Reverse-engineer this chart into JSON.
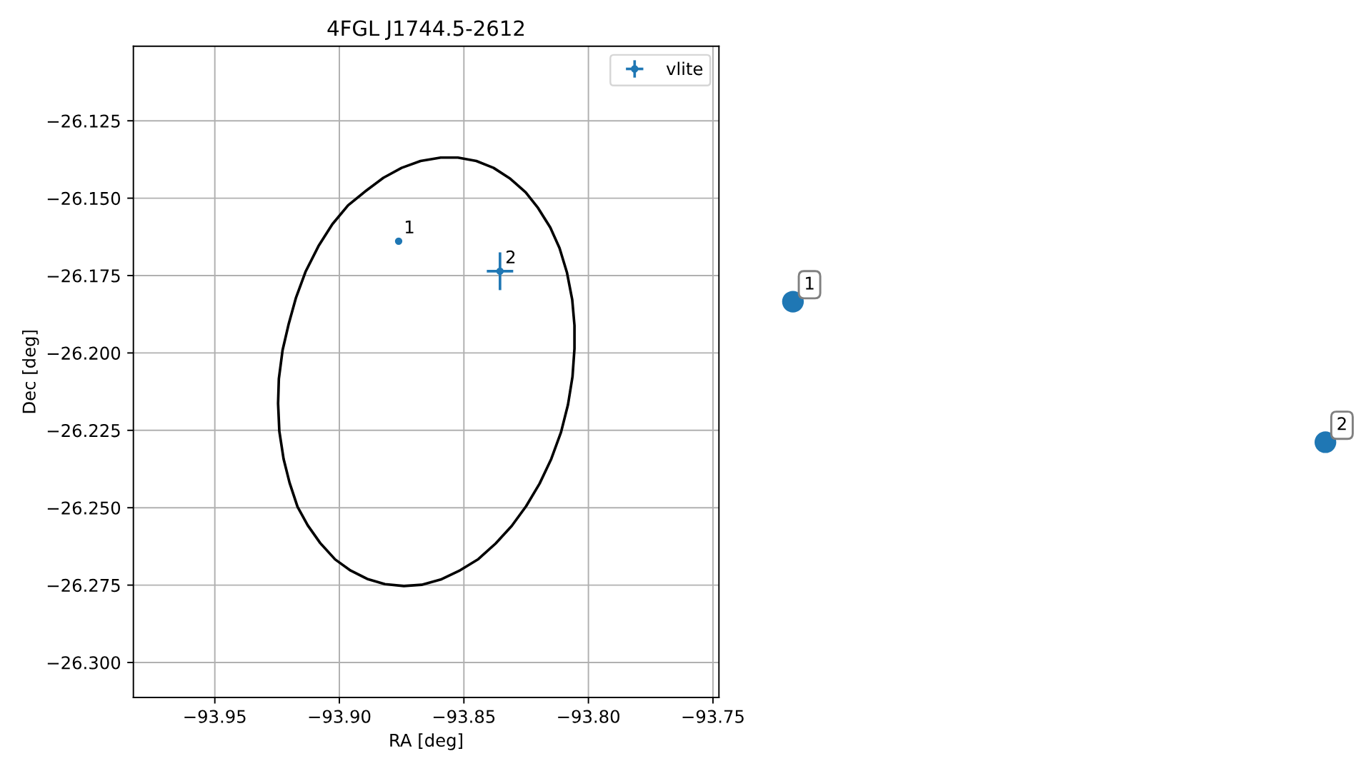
{
  "chart_data": [
    {
      "type": "scatter",
      "title": "4FGL J1744.5-2612",
      "xlabel": "RA [deg]",
      "ylabel": "Dec [deg]",
      "xlim": [
        -93.9827,
        -93.7476
      ],
      "ylim": [
        -26.3113,
        -26.1009
      ],
      "xticks": [
        {
          "value": -93.95,
          "label": "−93.95"
        },
        {
          "value": -93.9,
          "label": "−93.90"
        },
        {
          "value": -93.85,
          "label": "−93.85"
        },
        {
          "value": -93.8,
          "label": "−93.80"
        },
        {
          "value": -93.75,
          "label": "−93.75"
        }
      ],
      "yticks": [
        {
          "value": -26.125,
          "label": "−26.125"
        },
        {
          "value": -26.15,
          "label": "−26.150"
        },
        {
          "value": -26.175,
          "label": "−26.175"
        },
        {
          "value": -26.2,
          "label": "−26.200"
        },
        {
          "value": -26.225,
          "label": "−26.225"
        },
        {
          "value": -26.25,
          "label": "−26.250"
        },
        {
          "value": -26.275,
          "label": "−26.275"
        },
        {
          "value": -26.3,
          "label": "−26.300"
        }
      ],
      "grid": true,
      "legend": "top right",
      "marker": "circle",
      "series": [
        {
          "type": "line",
          "color": "#000000",
          "marker": "none",
          "x": [
            -93.9246,
            -93.9243,
            -93.9228,
            -93.9203,
            -93.9174,
            -93.9136,
            -93.9084,
            -93.9028,
            -93.8965,
            -93.8896,
            -93.8823,
            -93.875,
            -93.8674,
            -93.8593,
            -93.8524,
            -93.845,
            -93.8381,
            -93.8314,
            -93.8252,
            -93.8202,
            -93.8153,
            -93.8116,
            -93.8086,
            -93.8065,
            -93.8056,
            -93.8056,
            -93.8064,
            -93.8082,
            -93.811,
            -93.8149,
            -93.8196,
            -93.825,
            -93.8308,
            -93.8373,
            -93.8442,
            -93.8515,
            -93.8593,
            -93.867,
            -93.8741,
            -93.8817,
            -93.8888,
            -93.8955,
            -93.9017,
            -93.9077,
            -93.9127,
            -93.9168,
            -93.92,
            -93.9224,
            -93.9241,
            -93.9246,
            -93.9243,
            -93.9228
          ],
          "values": [
            -26.2163,
            -26.2084,
            -26.1991,
            -26.1905,
            -26.1821,
            -26.1738,
            -26.1655,
            -26.1584,
            -26.1523,
            -26.1478,
            -26.1434,
            -26.1402,
            -26.138,
            -26.1369,
            -26.1369,
            -26.138,
            -26.1402,
            -26.1437,
            -26.1481,
            -26.1532,
            -26.1595,
            -26.1661,
            -26.1741,
            -26.1828,
            -26.1911,
            -26.1986,
            -26.2077,
            -26.2167,
            -26.2256,
            -26.2342,
            -26.2422,
            -26.2495,
            -26.2559,
            -26.2616,
            -26.2666,
            -26.2702,
            -26.2732,
            -26.2749,
            -26.2753,
            -26.2747,
            -26.273,
            -26.2703,
            -26.2667,
            -26.2614,
            -26.2557,
            -26.2497,
            -26.2419,
            -26.2342,
            -26.2253,
            -26.2163,
            -26.2084,
            -26.1991
          ]
        },
        {
          "name": "vlite",
          "type": "scatter",
          "color": "#1f77b4",
          "x": [
            -93.8762,
            -93.8355
          ],
          "values": [
            -26.1639,
            -26.1736
          ],
          "errors": [
            null,
            0.0061
          ],
          "xerrors": [
            null,
            0.0053
          ]
        }
      ],
      "annotations": [
        {
          "text": "1",
          "x": -93.8762,
          "y": -26.1639
        },
        {
          "text": "2",
          "x": -93.8355,
          "y": -26.1736
        }
      ]
    },
    {
      "type": "other",
      "annotations": [
        "1",
        "2"
      ]
    }
  ]
}
